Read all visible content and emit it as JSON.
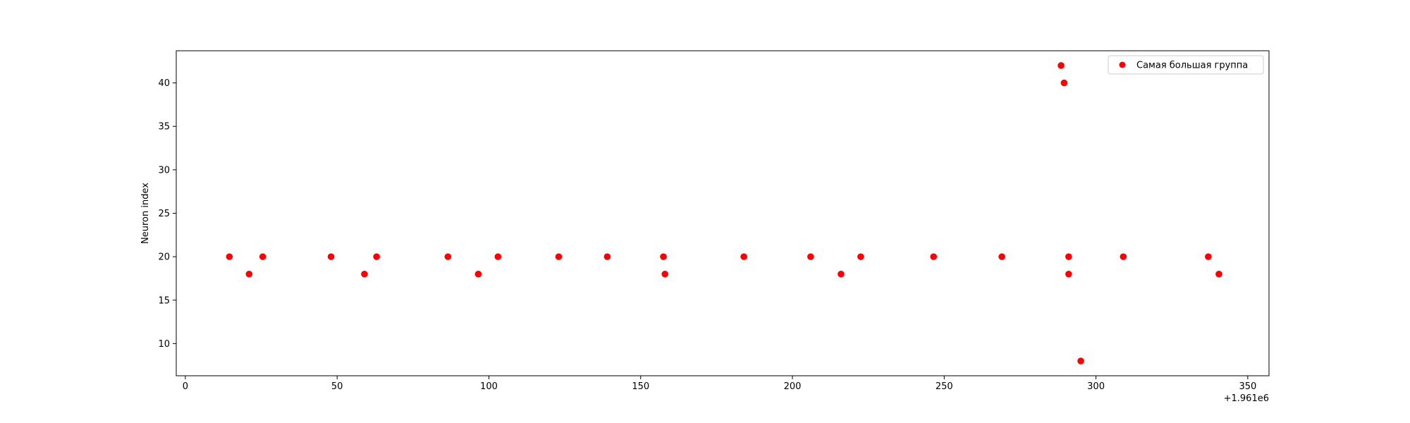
{
  "chart_data": {
    "type": "scatter",
    "title": "",
    "xlabel": "",
    "ylabel": "Neuron index",
    "x_offset_label": "+1.961e6",
    "xlim": [
      -3,
      357
    ],
    "ylim": [
      6.3,
      43.7
    ],
    "x_ticks": [
      0,
      50,
      100,
      150,
      200,
      250,
      300,
      350
    ],
    "y_ticks": [
      10,
      15,
      20,
      25,
      30,
      35,
      40
    ],
    "grid": false,
    "legend_position": "top-right",
    "marker_color": "#ff0000",
    "series": [
      {
        "name": "Самая большая группа",
        "points": [
          {
            "x": 14.5,
            "y": 20
          },
          {
            "x": 21,
            "y": 18
          },
          {
            "x": 25.5,
            "y": 20
          },
          {
            "x": 48,
            "y": 20
          },
          {
            "x": 59,
            "y": 18
          },
          {
            "x": 63,
            "y": 20
          },
          {
            "x": 86.5,
            "y": 20
          },
          {
            "x": 96.5,
            "y": 18
          },
          {
            "x": 103,
            "y": 20
          },
          {
            "x": 123,
            "y": 20
          },
          {
            "x": 139,
            "y": 20
          },
          {
            "x": 157.5,
            "y": 20
          },
          {
            "x": 158,
            "y": 18
          },
          {
            "x": 184,
            "y": 20
          },
          {
            "x": 206,
            "y": 20
          },
          {
            "x": 216,
            "y": 18
          },
          {
            "x": 222.5,
            "y": 20
          },
          {
            "x": 246.5,
            "y": 20
          },
          {
            "x": 269,
            "y": 20
          },
          {
            "x": 288.5,
            "y": 42
          },
          {
            "x": 289.5,
            "y": 40
          },
          {
            "x": 291,
            "y": 20
          },
          {
            "x": 291,
            "y": 18
          },
          {
            "x": 295,
            "y": 8
          },
          {
            "x": 309,
            "y": 20
          },
          {
            "x": 337,
            "y": 20
          },
          {
            "x": 340.5,
            "y": 18
          }
        ]
      }
    ]
  }
}
